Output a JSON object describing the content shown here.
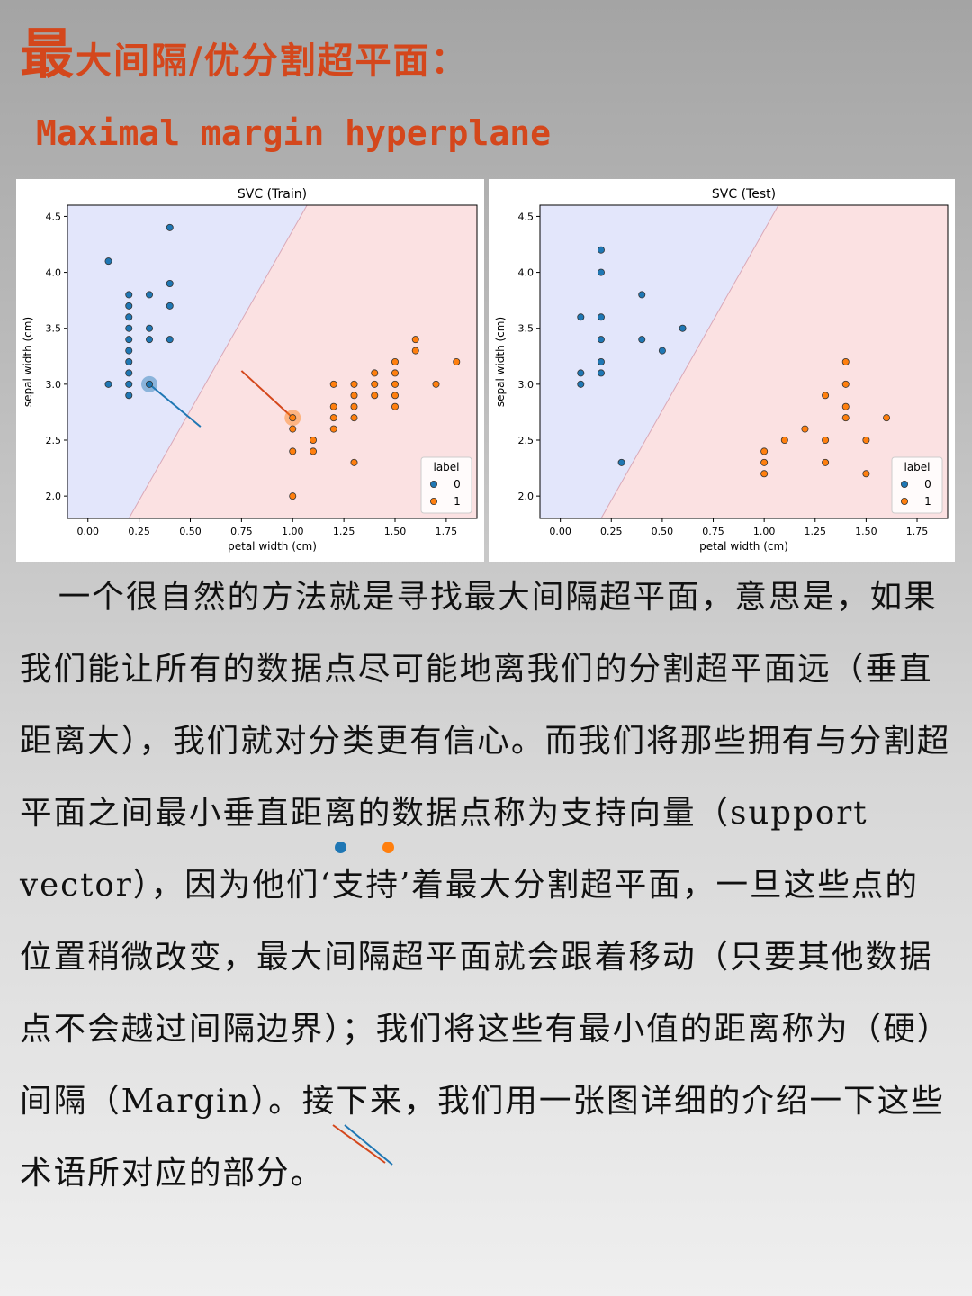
{
  "header": {
    "title_big_char": "最",
    "title_rest": "大间隔/优分割超平面：",
    "subtitle": "Maximal margin hyperplane"
  },
  "colors": {
    "accent": "#d4471c",
    "class0": "#1f77b4",
    "class1": "#ff7f0e",
    "region0": "#e3e6fb",
    "region1": "#fbe1e2"
  },
  "chart_data": [
    {
      "type": "scatter",
      "title": "SVC (Train)",
      "xlabel": "petal width (cm)",
      "ylabel": "sepal width (cm)",
      "xlim": [
        -0.1,
        1.9
      ],
      "ylim": [
        1.8,
        4.6
      ],
      "xticks": [
        "0.00",
        "0.25",
        "0.50",
        "0.75",
        "1.00",
        "1.25",
        "1.50",
        "1.75"
      ],
      "yticks": [
        "2.0",
        "2.5",
        "3.0",
        "3.5",
        "4.0",
        "4.5"
      ],
      "decision_boundary": [
        [
          0.2,
          1.8
        ],
        [
          1.07,
          4.6
        ]
      ],
      "legend": {
        "title": "label",
        "entries": [
          "0",
          "1"
        ],
        "placement": "lower-right"
      },
      "series": [
        {
          "name": "0",
          "points": [
            [
              0.1,
              4.1
            ],
            [
              0.1,
              3.0
            ],
            [
              0.2,
              3.8
            ],
            [
              0.2,
              3.7
            ],
            [
              0.2,
              3.6
            ],
            [
              0.2,
              3.5
            ],
            [
              0.2,
              3.4
            ],
            [
              0.2,
              3.3
            ],
            [
              0.2,
              3.2
            ],
            [
              0.2,
              3.1
            ],
            [
              0.2,
              3.0
            ],
            [
              0.2,
              2.9
            ],
            [
              0.3,
              3.8
            ],
            [
              0.3,
              3.5
            ],
            [
              0.3,
              3.4
            ],
            [
              0.3,
              3.0
            ],
            [
              0.4,
              4.4
            ],
            [
              0.4,
              3.9
            ],
            [
              0.4,
              3.7
            ],
            [
              0.4,
              3.4
            ]
          ]
        },
        {
          "name": "1",
          "points": [
            [
              1.0,
              2.7
            ],
            [
              1.0,
              2.6
            ],
            [
              1.0,
              2.4
            ],
            [
              1.0,
              2.0
            ],
            [
              1.1,
              2.5
            ],
            [
              1.1,
              2.4
            ],
            [
              1.2,
              3.0
            ],
            [
              1.2,
              2.8
            ],
            [
              1.2,
              2.7
            ],
            [
              1.2,
              2.6
            ],
            [
              1.3,
              3.0
            ],
            [
              1.3,
              2.9
            ],
            [
              1.3,
              2.8
            ],
            [
              1.3,
              2.7
            ],
            [
              1.3,
              2.3
            ],
            [
              1.4,
              3.1
            ],
            [
              1.4,
              3.0
            ],
            [
              1.4,
              2.9
            ],
            [
              1.5,
              3.2
            ],
            [
              1.5,
              3.1
            ],
            [
              1.5,
              3.0
            ],
            [
              1.5,
              2.9
            ],
            [
              1.5,
              2.8
            ],
            [
              1.6,
              3.4
            ],
            [
              1.6,
              3.3
            ],
            [
              1.7,
              3.0
            ],
            [
              1.8,
              3.2
            ]
          ]
        }
      ],
      "support_vectors": [
        {
          "label": "0",
          "x": 0.3,
          "y": 3.0,
          "line_to": [
            0.55,
            2.62
          ]
        },
        {
          "label": "1",
          "x": 1.0,
          "y": 2.7,
          "line_to": [
            0.75,
            3.12
          ]
        }
      ]
    },
    {
      "type": "scatter",
      "title": "SVC (Test)",
      "xlabel": "petal width (cm)",
      "ylabel": "sepal width (cm)",
      "xlim": [
        -0.1,
        1.9
      ],
      "ylim": [
        1.8,
        4.6
      ],
      "xticks": [
        "0.00",
        "0.25",
        "0.50",
        "0.75",
        "1.00",
        "1.25",
        "1.50",
        "1.75"
      ],
      "yticks": [
        "2.0",
        "2.5",
        "3.0",
        "3.5",
        "4.0",
        "4.5"
      ],
      "decision_boundary": [
        [
          0.2,
          1.8
        ],
        [
          1.07,
          4.6
        ]
      ],
      "legend": {
        "title": "label",
        "entries": [
          "0",
          "1"
        ],
        "placement": "lower-right"
      },
      "series": [
        {
          "name": "0",
          "points": [
            [
              0.1,
              3.6
            ],
            [
              0.1,
              3.1
            ],
            [
              0.1,
              3.0
            ],
            [
              0.2,
              4.2
            ],
            [
              0.2,
              4.0
            ],
            [
              0.2,
              3.6
            ],
            [
              0.2,
              3.4
            ],
            [
              0.2,
              3.2
            ],
            [
              0.2,
              3.1
            ],
            [
              0.3,
              2.3
            ],
            [
              0.4,
              3.8
            ],
            [
              0.4,
              3.4
            ],
            [
              0.5,
              3.3
            ],
            [
              0.6,
              3.5
            ]
          ]
        },
        {
          "name": "1",
          "points": [
            [
              1.0,
              2.4
            ],
            [
              1.0,
              2.3
            ],
            [
              1.0,
              2.2
            ],
            [
              1.1,
              2.5
            ],
            [
              1.2,
              2.6
            ],
            [
              1.3,
              2.9
            ],
            [
              1.3,
              2.5
            ],
            [
              1.3,
              2.3
            ],
            [
              1.4,
              3.2
            ],
            [
              1.4,
              3.0
            ],
            [
              1.4,
              2.8
            ],
            [
              1.4,
              2.7
            ],
            [
              1.5,
              2.5
            ],
            [
              1.5,
              2.2
            ],
            [
              1.6,
              2.7
            ]
          ]
        }
      ],
      "support_vectors": []
    }
  ],
  "body": {
    "paragraph": "一个很自然的方法就是寻找最大间隔超平面，意思是，如果我们能让所有的数据点尽可能地离我们的分割超平面远（垂直距离大），我们就对分类更有信心。而我们将那些拥有与分割超平面之间最小垂直距离的数据点称为支持向量（support vector），因为他们‘支持’着最大分割超平面，一旦这些点的位置稍微改变，最大间隔超平面就会跟着移动（只要其他数据点不会越过间隔边界）；我们将这些有最小值的距离称为（硬）间隔（Margin）。接下来，我们用一张图详细的介绍一下这些术语所对应的部分。"
  }
}
